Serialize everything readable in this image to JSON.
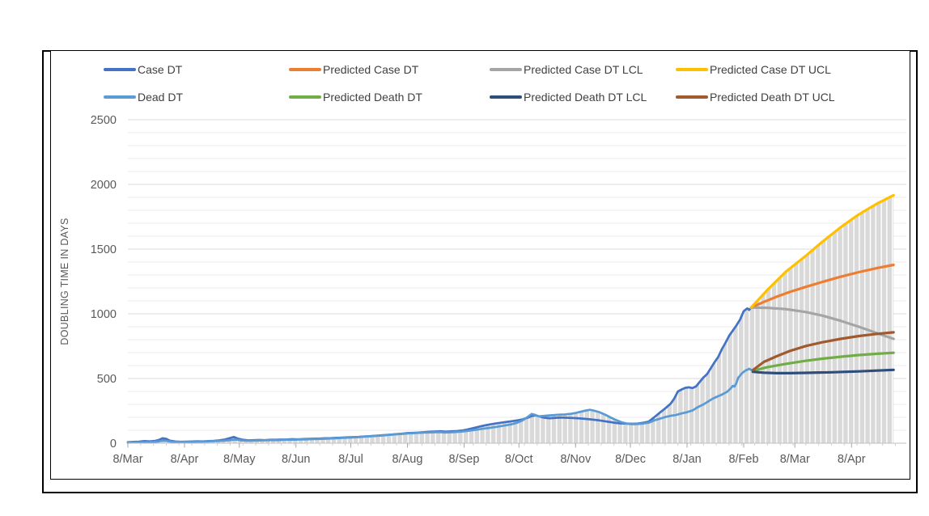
{
  "chart_data": {
    "type": "line",
    "title": "",
    "ylabel": "DOUBLING TIME IN DAYS",
    "xlabel": "",
    "ylim": [
      0,
      2500
    ],
    "y_ticks": [
      0,
      500,
      1000,
      1500,
      2000,
      2500
    ],
    "y_minor_step": 100,
    "y_major_step": 500,
    "x_domain": [
      0,
      426
    ],
    "data_end": 419,
    "x_minor_tick_days": 7,
    "grid": "horizontal-minor-on",
    "legend_position": "top-two-rows",
    "area_fill": {
      "style": "vertical-striped",
      "color": "#d9d9d9",
      "description": "gray area with thin white vertical stripes under the upper envelope of all series"
    },
    "x_ticks": [
      {
        "label": "8/Mar",
        "day": 0
      },
      {
        "label": "8/Apr",
        "day": 31
      },
      {
        "label": "8/May",
        "day": 61
      },
      {
        "label": "8/Jun",
        "day": 92
      },
      {
        "label": "8/Jul",
        "day": 122
      },
      {
        "label": "8/Aug",
        "day": 153
      },
      {
        "label": "8/Sep",
        "day": 184
      },
      {
        "label": "8/Oct",
        "day": 214
      },
      {
        "label": "8/Nov",
        "day": 245
      },
      {
        "label": "8/Dec",
        "day": 275
      },
      {
        "label": "8/Jan",
        "day": 306
      },
      {
        "label": "8/Feb",
        "day": 337
      },
      {
        "label": "8/Mar",
        "day": 365
      },
      {
        "label": "8/Apr",
        "day": 396
      }
    ],
    "series": [
      {
        "id": "case-dt",
        "name": "Case DT",
        "color": "#4472C4",
        "width": 2.75,
        "points": [
          [
            0,
            8
          ],
          [
            3,
            10
          ],
          [
            6,
            12
          ],
          [
            9,
            16
          ],
          [
            12,
            14
          ],
          [
            15,
            18
          ],
          [
            17,
            25
          ],
          [
            19,
            38
          ],
          [
            21,
            34
          ],
          [
            23,
            20
          ],
          [
            26,
            13
          ],
          [
            29,
            11
          ],
          [
            32,
            12
          ],
          [
            35,
            13
          ],
          [
            38,
            15
          ],
          [
            41,
            14
          ],
          [
            44,
            16
          ],
          [
            47,
            18
          ],
          [
            50,
            22
          ],
          [
            53,
            28
          ],
          [
            56,
            40
          ],
          [
            58,
            48
          ],
          [
            60,
            36
          ],
          [
            63,
            26
          ],
          [
            66,
            22
          ],
          [
            69,
            23
          ],
          [
            72,
            25
          ],
          [
            75,
            24
          ],
          [
            78,
            26
          ],
          [
            81,
            27
          ],
          [
            84,
            28
          ],
          [
            87,
            29
          ],
          [
            90,
            31
          ],
          [
            93,
            30
          ],
          [
            96,
            32
          ],
          [
            99,
            34
          ],
          [
            102,
            35
          ],
          [
            105,
            36
          ],
          [
            108,
            38
          ],
          [
            111,
            39
          ],
          [
            114,
            41
          ],
          [
            117,
            43
          ],
          [
            120,
            45
          ],
          [
            123,
            47
          ],
          [
            126,
            49
          ],
          [
            129,
            52
          ],
          [
            132,
            54
          ],
          [
            135,
            57
          ],
          [
            138,
            60
          ],
          [
            141,
            63
          ],
          [
            144,
            66
          ],
          [
            147,
            70
          ],
          [
            150,
            74
          ],
          [
            153,
            78
          ],
          [
            156,
            80
          ],
          [
            159,
            82
          ],
          [
            162,
            85
          ],
          [
            165,
            88
          ],
          [
            168,
            90
          ],
          [
            171,
            92
          ],
          [
            174,
            89
          ],
          [
            177,
            91
          ],
          [
            180,
            94
          ],
          [
            183,
            98
          ],
          [
            186,
            106
          ],
          [
            189,
            116
          ],
          [
            192,
            127
          ],
          [
            195,
            137
          ],
          [
            198,
            145
          ],
          [
            201,
            152
          ],
          [
            204,
            158
          ],
          [
            207,
            164
          ],
          [
            210,
            170
          ],
          [
            213,
            176
          ],
          [
            216,
            184
          ],
          [
            219,
            198
          ],
          [
            221,
            210
          ],
          [
            223,
            215
          ],
          [
            225,
            208
          ],
          [
            227,
            200
          ],
          [
            229,
            195
          ],
          [
            231,
            193
          ],
          [
            234,
            196
          ],
          [
            237,
            199
          ],
          [
            240,
            197
          ],
          [
            243,
            195
          ],
          [
            246,
            193
          ],
          [
            249,
            190
          ],
          [
            252,
            186
          ],
          [
            255,
            181
          ],
          [
            258,
            176
          ],
          [
            261,
            170
          ],
          [
            264,
            163
          ],
          [
            267,
            157
          ],
          [
            270,
            153
          ],
          [
            273,
            151
          ],
          [
            276,
            150
          ],
          [
            279,
            152
          ],
          [
            282,
            158
          ],
          [
            285,
            167
          ],
          [
            288,
            200
          ],
          [
            291,
            235
          ],
          [
            294,
            268
          ],
          [
            297,
            305
          ],
          [
            299,
            345
          ],
          [
            301,
            400
          ],
          [
            303,
            415
          ],
          [
            305,
            428
          ],
          [
            307,
            432
          ],
          [
            309,
            426
          ],
          [
            311,
            440
          ],
          [
            313,
            475
          ],
          [
            315,
            508
          ],
          [
            317,
            535
          ],
          [
            319,
            580
          ],
          [
            321,
            625
          ],
          [
            323,
            665
          ],
          [
            325,
            725
          ],
          [
            327,
            775
          ],
          [
            329,
            830
          ],
          [
            331,
            870
          ],
          [
            333,
            910
          ],
          [
            335,
            955
          ],
          [
            337,
            1020
          ],
          [
            338,
            1032
          ],
          [
            339,
            1042
          ],
          [
            340,
            1030
          ],
          [
            341,
            1048
          ]
        ]
      },
      {
        "id": "predicted-case-dt",
        "name": "Predicted Case DT",
        "color": "#ED7D31",
        "width": 3.2,
        "points": [
          [
            341,
            1048
          ],
          [
            348,
            1092
          ],
          [
            355,
            1132
          ],
          [
            362,
            1168
          ],
          [
            371,
            1208
          ],
          [
            380,
            1246
          ],
          [
            390,
            1286
          ],
          [
            400,
            1322
          ],
          [
            410,
            1354
          ],
          [
            419,
            1378
          ]
        ]
      },
      {
        "id": "predicted-case-dt-lcl",
        "name": "Predicted Case DT LCL",
        "color": "#A5A5A5",
        "width": 3.2,
        "points": [
          [
            341,
            1048
          ],
          [
            350,
            1046
          ],
          [
            360,
            1036
          ],
          [
            371,
            1014
          ],
          [
            380,
            986
          ],
          [
            390,
            946
          ],
          [
            400,
            900
          ],
          [
            410,
            850
          ],
          [
            419,
            806
          ]
        ]
      },
      {
        "id": "predicted-case-dt-ucl",
        "name": "Predicted Case DT UCL",
        "color": "#FFC000",
        "width": 3.2,
        "points": [
          [
            341,
            1048
          ],
          [
            350,
            1185
          ],
          [
            360,
            1325
          ],
          [
            371,
            1448
          ],
          [
            380,
            1556
          ],
          [
            390,
            1668
          ],
          [
            400,
            1768
          ],
          [
            410,
            1852
          ],
          [
            419,
            1916
          ]
        ]
      },
      {
        "id": "dead-dt",
        "name": "Dead DT",
        "color": "#5B9BD5",
        "width": 2.75,
        "points": [
          [
            0,
            5
          ],
          [
            6,
            7
          ],
          [
            12,
            9
          ],
          [
            17,
            14
          ],
          [
            19,
            20
          ],
          [
            21,
            18
          ],
          [
            24,
            12
          ],
          [
            28,
            10
          ],
          [
            32,
            11
          ],
          [
            36,
            12
          ],
          [
            40,
            13
          ],
          [
            44,
            14
          ],
          [
            48,
            16
          ],
          [
            52,
            19
          ],
          [
            56,
            24
          ],
          [
            59,
            28
          ],
          [
            62,
            22
          ],
          [
            66,
            19
          ],
          [
            70,
            20
          ],
          [
            74,
            22
          ],
          [
            78,
            23
          ],
          [
            82,
            24
          ],
          [
            86,
            26
          ],
          [
            90,
            27
          ],
          [
            94,
            29
          ],
          [
            98,
            30
          ],
          [
            102,
            32
          ],
          [
            106,
            34
          ],
          [
            110,
            36
          ],
          [
            114,
            38
          ],
          [
            118,
            41
          ],
          [
            122,
            44
          ],
          [
            126,
            47
          ],
          [
            130,
            51
          ],
          [
            134,
            55
          ],
          [
            138,
            59
          ],
          [
            142,
            63
          ],
          [
            146,
            68
          ],
          [
            150,
            72
          ],
          [
            154,
            76
          ],
          [
            158,
            79
          ],
          [
            162,
            82
          ],
          [
            166,
            84
          ],
          [
            170,
            86
          ],
          [
            174,
            83
          ],
          [
            178,
            85
          ],
          [
            182,
            89
          ],
          [
            186,
            95
          ],
          [
            190,
            103
          ],
          [
            194,
            111
          ],
          [
            198,
            119
          ],
          [
            202,
            127
          ],
          [
            206,
            136
          ],
          [
            210,
            146
          ],
          [
            213,
            158
          ],
          [
            216,
            176
          ],
          [
            219,
            205
          ],
          [
            221,
            226
          ],
          [
            223,
            218
          ],
          [
            225,
            207
          ],
          [
            227,
            210
          ],
          [
            230,
            214
          ],
          [
            233,
            217
          ],
          [
            236,
            220
          ],
          [
            239,
            222
          ],
          [
            242,
            226
          ],
          [
            245,
            234
          ],
          [
            248,
            244
          ],
          [
            251,
            254
          ],
          [
            253,
            258
          ],
          [
            255,
            252
          ],
          [
            258,
            240
          ],
          [
            261,
            222
          ],
          [
            264,
            200
          ],
          [
            267,
            180
          ],
          [
            270,
            163
          ],
          [
            273,
            152
          ],
          [
            276,
            147
          ],
          [
            279,
            148
          ],
          [
            282,
            152
          ],
          [
            285,
            158
          ],
          [
            288,
            176
          ],
          [
            291,
            189
          ],
          [
            294,
            202
          ],
          [
            297,
            212
          ],
          [
            300,
            218
          ],
          [
            303,
            230
          ],
          [
            306,
            240
          ],
          [
            309,
            253
          ],
          [
            312,
            280
          ],
          [
            315,
            300
          ],
          [
            318,
            326
          ],
          [
            320,
            344
          ],
          [
            323,
            363
          ],
          [
            325,
            375
          ],
          [
            328,
            398
          ],
          [
            330,
            425
          ],
          [
            331,
            443
          ],
          [
            332,
            438
          ],
          [
            333,
            465
          ],
          [
            334,
            505
          ],
          [
            336,
            540
          ],
          [
            338,
            562
          ],
          [
            340,
            575
          ],
          [
            342,
            560
          ]
        ]
      },
      {
        "id": "predicted-death-dt",
        "name": "Predicted Death DT",
        "color": "#70AD47",
        "width": 3.2,
        "points": [
          [
            342,
            560
          ],
          [
            350,
            588
          ],
          [
            360,
            613
          ],
          [
            371,
            637
          ],
          [
            380,
            653
          ],
          [
            390,
            668
          ],
          [
            400,
            681
          ],
          [
            410,
            691
          ],
          [
            419,
            699
          ]
        ]
      },
      {
        "id": "predicted-death-dt-lcl",
        "name": "Predicted Death DT LCL",
        "color": "#2E4D7B",
        "width": 3.2,
        "points": [
          [
            342,
            552
          ],
          [
            348,
            545
          ],
          [
            355,
            541
          ],
          [
            362,
            541
          ],
          [
            371,
            544
          ],
          [
            385,
            548
          ],
          [
            400,
            555
          ],
          [
            410,
            561
          ],
          [
            419,
            567
          ]
        ]
      },
      {
        "id": "predicted-death-dt-ucl",
        "name": "Predicted Death DT UCL",
        "color": "#A05A2D",
        "width": 3.2,
        "points": [
          [
            342,
            565
          ],
          [
            348,
            628
          ],
          [
            355,
            672
          ],
          [
            362,
            712
          ],
          [
            371,
            751
          ],
          [
            380,
            780
          ],
          [
            390,
            806
          ],
          [
            400,
            828
          ],
          [
            410,
            845
          ],
          [
            419,
            857
          ]
        ]
      }
    ]
  }
}
